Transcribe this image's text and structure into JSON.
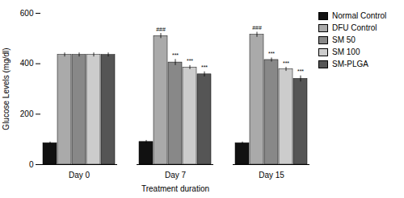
{
  "chart_data": {
    "type": "bar",
    "categories": [
      "Day 0",
      "Day 7",
      "Day 15"
    ],
    "series": [
      {
        "name": "Normal Control",
        "color": "#111111",
        "values": [
          85,
          90,
          85
        ],
        "errors": [
          5,
          6,
          5
        ],
        "annotations": [
          null,
          null,
          null
        ]
      },
      {
        "name": "DFU Control",
        "color": "#aaaaaa",
        "values": [
          435,
          510,
          515
        ],
        "errors": [
          8,
          10,
          10
        ],
        "annotations": [
          null,
          "###",
          "###"
        ]
      },
      {
        "name": "SM 50",
        "color": "#888888",
        "values": [
          435,
          405,
          415
        ],
        "errors": [
          8,
          12,
          8
        ],
        "annotations": [
          null,
          "***",
          "***"
        ]
      },
      {
        "name": "SM 100",
        "color": "#cccccc",
        "values": [
          435,
          385,
          378
        ],
        "errors": [
          8,
          8,
          8
        ],
        "annotations": [
          null,
          "***",
          "***"
        ]
      },
      {
        "name": "SM-PLGA",
        "color": "#555555",
        "values": [
          435,
          358,
          340
        ],
        "errors": [
          8,
          10,
          12
        ],
        "annotations": [
          null,
          "***",
          "***"
        ]
      }
    ],
    "xlabel": "Treatment duration",
    "ylabel": "Glucose Levels (mg/dl)",
    "ylim": [
      0,
      600
    ],
    "yticks": [
      0,
      200,
      400,
      600
    ],
    "legend": "right"
  }
}
